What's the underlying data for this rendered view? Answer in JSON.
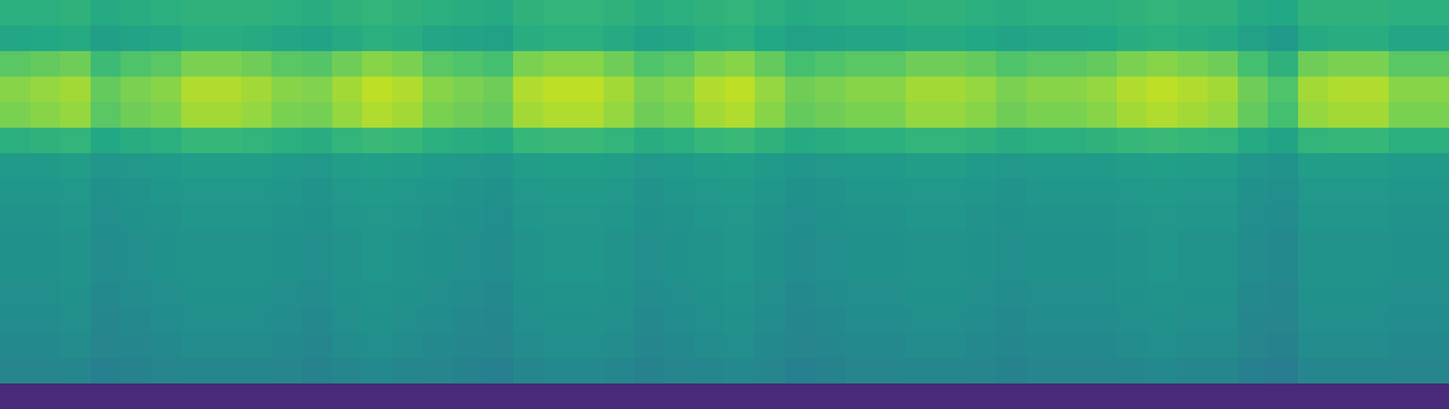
{
  "chart_data": {
    "type": "heatmap",
    "color": "viridis",
    "color_range": [
      0,
      100
    ],
    "tick_labels": false,
    "cells": [
      [
        63,
        63,
        64,
        61,
        62,
        63,
        64,
        64,
        64,
        63,
        62,
        64,
        65,
        64,
        63,
        62,
        61,
        64,
        65,
        65,
        64,
        62,
        63,
        64,
        65,
        63,
        61,
        62,
        63,
        63,
        64,
        64,
        63,
        62,
        63,
        63,
        63,
        64,
        65,
        64,
        64,
        61,
        60,
        64,
        64,
        64,
        63,
        63
      ],
      [
        59,
        60,
        61,
        56,
        58,
        59,
        62,
        62,
        61,
        59,
        58,
        61,
        63,
        62,
        59,
        58,
        57,
        62,
        63,
        63,
        61,
        58,
        59,
        62,
        63,
        60,
        57,
        58,
        59,
        59,
        61,
        61,
        60,
        58,
        59,
        59,
        60,
        62,
        63,
        62,
        61,
        57,
        54,
        61,
        62,
        62,
        59,
        59
      ],
      [
        74,
        76,
        78,
        68,
        72,
        74,
        80,
        80,
        78,
        74,
        73,
        78,
        82,
        80,
        74,
        72,
        70,
        80,
        82,
        82,
        78,
        72,
        74,
        80,
        82,
        76,
        70,
        72,
        74,
        74,
        78,
        78,
        76,
        72,
        74,
        74,
        76,
        80,
        82,
        80,
        78,
        70,
        64,
        78,
        80,
        80,
        74,
        74
      ],
      [
        82,
        84,
        86,
        76,
        80,
        82,
        88,
        88,
        86,
        82,
        81,
        86,
        90,
        88,
        82,
        80,
        78,
        88,
        90,
        90,
        86,
        80,
        82,
        88,
        90,
        84,
        78,
        80,
        82,
        82,
        86,
        86,
        84,
        80,
        82,
        82,
        84,
        88,
        90,
        88,
        86,
        78,
        72,
        86,
        88,
        88,
        82,
        82
      ],
      [
        80,
        82,
        84,
        74,
        78,
        80,
        86,
        86,
        84,
        80,
        79,
        84,
        88,
        86,
        80,
        78,
        76,
        86,
        88,
        88,
        84,
        78,
        80,
        86,
        88,
        82,
        76,
        78,
        80,
        80,
        84,
        84,
        82,
        78,
        80,
        80,
        82,
        86,
        88,
        86,
        84,
        76,
        70,
        84,
        86,
        86,
        80,
        80
      ],
      [
        63,
        64,
        65,
        60,
        62,
        63,
        66,
        66,
        65,
        63,
        62,
        65,
        67,
        66,
        63,
        62,
        61,
        66,
        67,
        67,
        65,
        62,
        63,
        66,
        67,
        64,
        61,
        62,
        63,
        63,
        65,
        65,
        64,
        62,
        63,
        63,
        64,
        66,
        67,
        66,
        65,
        61,
        58,
        65,
        66,
        66,
        63,
        63
      ],
      [
        54,
        54,
        55,
        52,
        53,
        54,
        55,
        55,
        55,
        54,
        53,
        55,
        56,
        55,
        54,
        53,
        52,
        55,
        56,
        56,
        55,
        53,
        54,
        55,
        56,
        54,
        52,
        53,
        54,
        54,
        55,
        55,
        54,
        53,
        54,
        54,
        54,
        55,
        56,
        55,
        55,
        52,
        51,
        55,
        55,
        55,
        54,
        54
      ],
      [
        52,
        52,
        53,
        50,
        51,
        52,
        53,
        53,
        53,
        52,
        51,
        53,
        54,
        53,
        52,
        51,
        50,
        53,
        54,
        54,
        53,
        51,
        52,
        53,
        54,
        52,
        50,
        51,
        52,
        52,
        53,
        53,
        52,
        51,
        52,
        52,
        52,
        53,
        54,
        53,
        53,
        50,
        49,
        53,
        53,
        53,
        52,
        52
      ],
      [
        51,
        51,
        52,
        49,
        50,
        51,
        52,
        52,
        52,
        51,
        50,
        52,
        53,
        52,
        51,
        50,
        49,
        52,
        53,
        53,
        52,
        50,
        51,
        52,
        53,
        51,
        49,
        50,
        51,
        51,
        52,
        52,
        51,
        50,
        51,
        51,
        51,
        52,
        53,
        52,
        52,
        49,
        48,
        52,
        52,
        52,
        51,
        51
      ],
      [
        50,
        50,
        51,
        48,
        49,
        50,
        51,
        51,
        51,
        50,
        49,
        51,
        52,
        51,
        50,
        49,
        48,
        51,
        52,
        52,
        51,
        49,
        50,
        51,
        52,
        50,
        48,
        49,
        50,
        50,
        51,
        51,
        50,
        49,
        50,
        50,
        50,
        51,
        52,
        51,
        51,
        48,
        47,
        51,
        51,
        51,
        50,
        50
      ],
      [
        50,
        50,
        51,
        48,
        49,
        50,
        51,
        51,
        51,
        50,
        49,
        51,
        52,
        51,
        50,
        49,
        48,
        51,
        52,
        52,
        51,
        49,
        50,
        51,
        52,
        50,
        48,
        49,
        50,
        50,
        51,
        51,
        50,
        49,
        50,
        50,
        50,
        51,
        52,
        51,
        51,
        48,
        47,
        51,
        51,
        51,
        50,
        50
      ],
      [
        49,
        49,
        50,
        47,
        48,
        49,
        50,
        50,
        50,
        49,
        48,
        50,
        51,
        50,
        49,
        48,
        47,
        50,
        51,
        51,
        50,
        48,
        49,
        50,
        51,
        49,
        47,
        48,
        49,
        49,
        50,
        50,
        49,
        48,
        49,
        49,
        49,
        50,
        51,
        50,
        50,
        47,
        46,
        50,
        50,
        50,
        49,
        49
      ],
      [
        48,
        48,
        49,
        46,
        47,
        48,
        49,
        49,
        49,
        48,
        47,
        49,
        50,
        49,
        48,
        47,
        46,
        49,
        50,
        50,
        49,
        47,
        48,
        49,
        50,
        48,
        46,
        47,
        48,
        48,
        49,
        49,
        48,
        47,
        48,
        48,
        48,
        49,
        50,
        49,
        49,
        46,
        45,
        49,
        49,
        49,
        48,
        48
      ],
      [
        47,
        47,
        48,
        45,
        46,
        47,
        48,
        48,
        48,
        47,
        46,
        48,
        49,
        48,
        47,
        46,
        45,
        48,
        49,
        49,
        48,
        46,
        47,
        48,
        49,
        47,
        45,
        46,
        47,
        47,
        48,
        48,
        47,
        46,
        47,
        47,
        47,
        48,
        49,
        48,
        48,
        45,
        44,
        48,
        48,
        48,
        47,
        47
      ],
      [
        45,
        45,
        46,
        43,
        44,
        45,
        46,
        46,
        46,
        45,
        44,
        46,
        47,
        46,
        45,
        44,
        43,
        46,
        47,
        47,
        46,
        44,
        45,
        46,
        47,
        45,
        43,
        44,
        45,
        45,
        46,
        46,
        45,
        44,
        45,
        45,
        45,
        46,
        47,
        46,
        46,
        43,
        42,
        46,
        46,
        46,
        45,
        45
      ],
      [
        12,
        12,
        12,
        12,
        12,
        12,
        12,
        12,
        12,
        12,
        12,
        12,
        12,
        12,
        12,
        12,
        12,
        12,
        12,
        12,
        12,
        12,
        12,
        12,
        12,
        12,
        12,
        12,
        12,
        12,
        12,
        12,
        12,
        12,
        12,
        12,
        12,
        12,
        12,
        12,
        12,
        12,
        12,
        12,
        12,
        12,
        12,
        12
      ]
    ]
  }
}
